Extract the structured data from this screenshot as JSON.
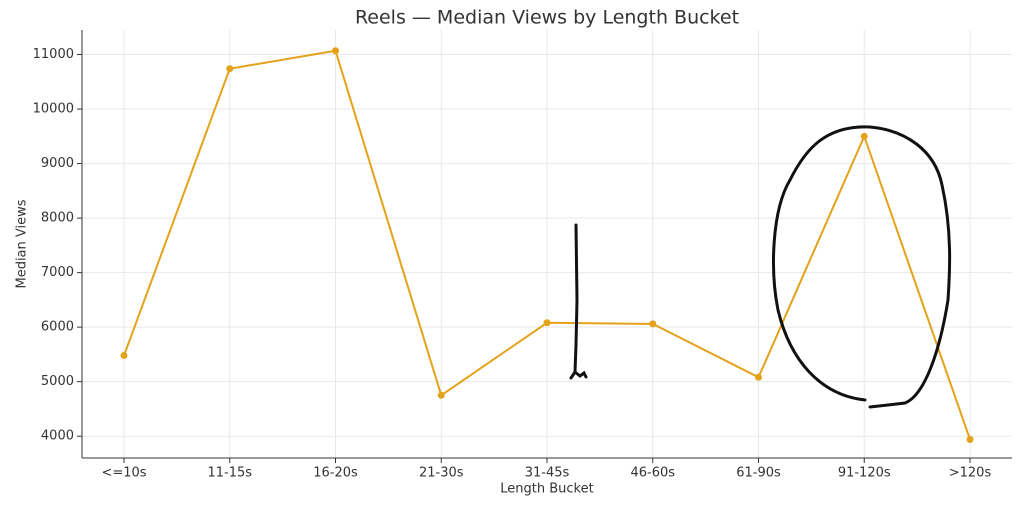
{
  "chart_data": {
    "type": "line",
    "title": "Reels — Median Views by Length Bucket",
    "x_label": "Length Bucket",
    "y_label": "Median Views",
    "categories": [
      "<=10s",
      "11-15s",
      "16-20s",
      "21-30s",
      "31-45s",
      "46-60s",
      "61-90s",
      "91-120s",
      ">120s"
    ],
    "series": [
      {
        "name": "Median Views",
        "color": "#e3a21a",
        "values": [
          5480,
          10740,
          11070,
          4750,
          6080,
          6060,
          5080,
          9500,
          3940
        ]
      }
    ],
    "ylim": [
      3600,
      11450
    ],
    "yticks": [
      4000,
      5000,
      6000,
      7000,
      8000,
      9000,
      10000,
      11000
    ],
    "grid": true
  }
}
